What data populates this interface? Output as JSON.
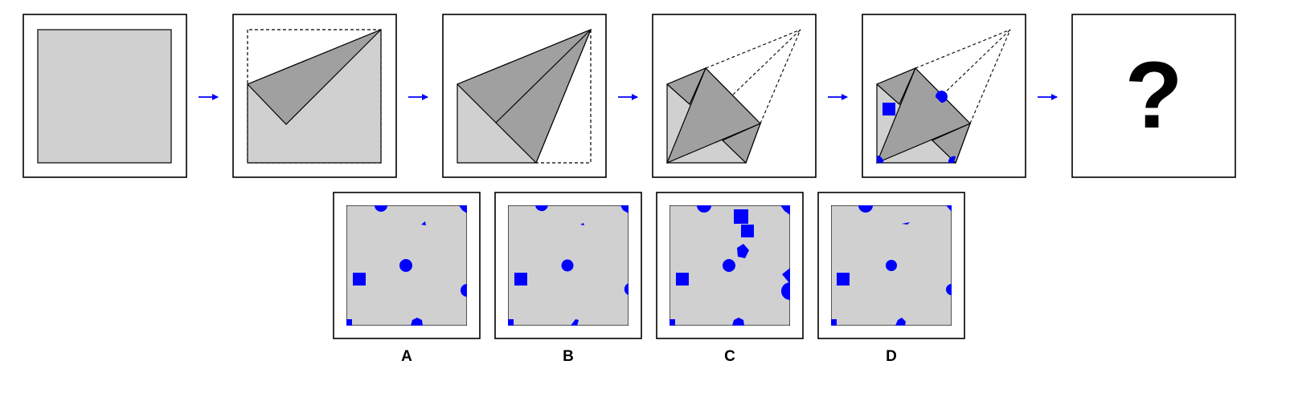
{
  "puzzle": {
    "question_mark": "?",
    "options": [
      {
        "letter": "A"
      },
      {
        "letter": "B"
      },
      {
        "letter": "C"
      },
      {
        "letter": "D"
      }
    ]
  },
  "colors": {
    "paper": "#d0d0d0",
    "fold": "#a0a0a0",
    "hole": "#0000ff",
    "arrow": "#0000ff",
    "frame": "#000000",
    "background": "#ffffff"
  }
}
